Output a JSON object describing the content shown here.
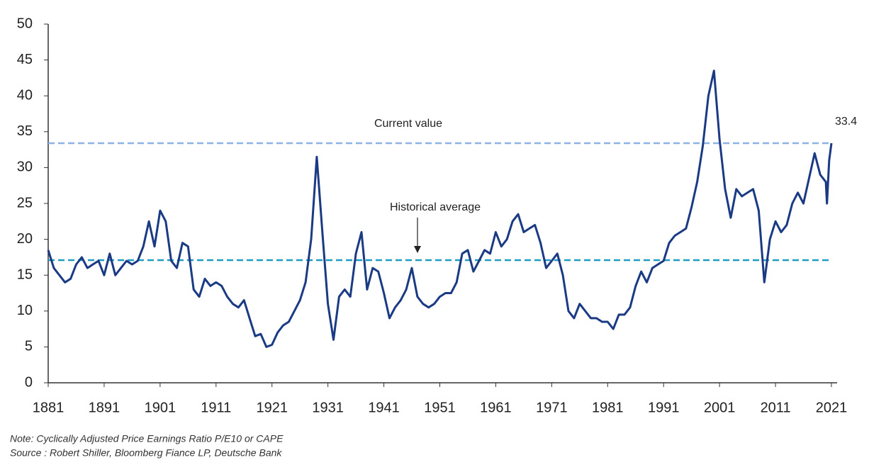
{
  "chart_data": {
    "type": "line",
    "x": [
      1881,
      1882,
      1883,
      1884,
      1885,
      1886,
      1887,
      1888,
      1889,
      1890,
      1891,
      1892,
      1893,
      1894,
      1895,
      1896,
      1897,
      1898,
      1899,
      1900,
      1901,
      1902,
      1903,
      1904,
      1905,
      1906,
      1907,
      1908,
      1909,
      1910,
      1911,
      1912,
      1913,
      1914,
      1915,
      1916,
      1917,
      1918,
      1919,
      1920,
      1921,
      1922,
      1923,
      1924,
      1925,
      1926,
      1927,
      1928,
      1929,
      1930,
      1931,
      1932,
      1933,
      1934,
      1935,
      1936,
      1937,
      1938,
      1939,
      1940,
      1941,
      1942,
      1943,
      1944,
      1945,
      1946,
      1947,
      1948,
      1949,
      1950,
      1951,
      1952,
      1953,
      1954,
      1955,
      1956,
      1957,
      1958,
      1959,
      1960,
      1961,
      1962,
      1963,
      1964,
      1965,
      1966,
      1967,
      1968,
      1969,
      1970,
      1971,
      1972,
      1973,
      1974,
      1975,
      1976,
      1977,
      1978,
      1979,
      1980,
      1981,
      1982,
      1983,
      1984,
      1985,
      1986,
      1987,
      1988,
      1989,
      1990,
      1991,
      1992,
      1993,
      1994,
      1995,
      1996,
      1997,
      1998,
      1999,
      2000,
      2001,
      2002,
      2003,
      2004,
      2005,
      2006,
      2007,
      2008,
      2009,
      2010,
      2011,
      2012,
      2013,
      2014,
      2015,
      2016,
      2017,
      2018,
      2019,
      2020,
      2020.2,
      2020.6,
      2021
    ],
    "series": [
      {
        "name": "CAPE",
        "color": "#1a3a84",
        "values": [
          18.5,
          16,
          15,
          14,
          14.5,
          16.5,
          17.5,
          16,
          16.5,
          17,
          15,
          18,
          15,
          16,
          17,
          16.5,
          17,
          19,
          22.5,
          19,
          24,
          22.5,
          17,
          16,
          19.5,
          19,
          13,
          12,
          14.5,
          13.5,
          14,
          13.5,
          12,
          11,
          10.5,
          11.5,
          9,
          6.5,
          6.8,
          5,
          5.3,
          7,
          8,
          8.5,
          10,
          11.5,
          14,
          20,
          31.5,
          21,
          11,
          6,
          12,
          13,
          12,
          18,
          21,
          13,
          16,
          15.5,
          12.5,
          9,
          10.5,
          11.5,
          13,
          16,
          12,
          11,
          10.5,
          11,
          12,
          12.5,
          12.5,
          14,
          18,
          18.5,
          15.5,
          17,
          18.5,
          18,
          21,
          19,
          20,
          22.5,
          23.5,
          21,
          21.5,
          22,
          19.5,
          16,
          17,
          18,
          15,
          10,
          9,
          11,
          10,
          9,
          9,
          8.5,
          8.5,
          7.5,
          9.5,
          9.5,
          10.5,
          13.5,
          15.5,
          14,
          16,
          16.5,
          17,
          19.5,
          20.5,
          21,
          21.5,
          24.5,
          28,
          33,
          40,
          43.5,
          34,
          27,
          23,
          27,
          26,
          26.5,
          27,
          24,
          14,
          20,
          22.5,
          21,
          22,
          25,
          26.5,
          25,
          28.5,
          32,
          29,
          28,
          25,
          31,
          33.4
        ]
      }
    ],
    "xlim": [
      1881,
      2021
    ],
    "xticks": [
      1881,
      1891,
      1901,
      1911,
      1921,
      1931,
      1941,
      1951,
      1961,
      1971,
      1981,
      1991,
      2001,
      2011,
      2021
    ],
    "ylim": [
      0,
      50
    ],
    "yticks": [
      0,
      5,
      10,
      15,
      20,
      25,
      30,
      35,
      40,
      45,
      50
    ],
    "reference_lines": [
      {
        "name": "Current value",
        "value": 33.4,
        "value_label": "33.4",
        "color": "#8db3e6"
      },
      {
        "name": "Historical average",
        "value": 17.1,
        "color": "#1f9bc4"
      }
    ],
    "note": "Note: Cyclically Adjusted Price Earnings Ratio P/E10 or CAPE",
    "source": "Source : Robert Shiller, Bloomberg Fiance LP, Deutsche Bank"
  }
}
